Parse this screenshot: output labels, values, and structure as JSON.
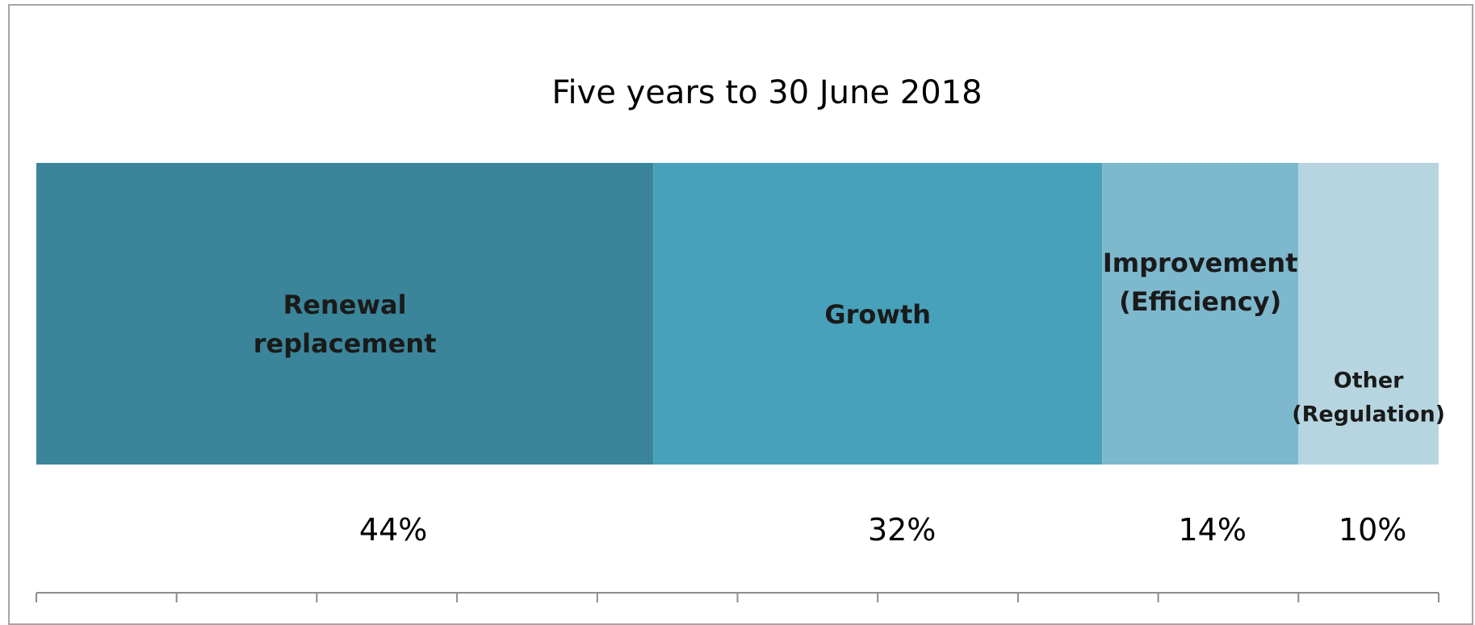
{
  "chart_data": {
    "type": "bar",
    "orientation": "horizontal-stacked-100",
    "title": "Five years to 30 June 2018",
    "categories": [
      "Renewal replacement",
      "Growth",
      "Improvement (Efficiency)",
      "Other (Regulation)"
    ],
    "series": [
      {
        "name": "Renewal replacement",
        "label_lines": [
          "Renewal",
          "replacement"
        ],
        "value": 44,
        "value_label": "44%",
        "color": "#3a8599"
      },
      {
        "name": "Growth",
        "label_lines": [
          "Growth"
        ],
        "value": 32,
        "value_label": "32%",
        "color": "#48a1ba"
      },
      {
        "name": "Improvement (Efficiency)",
        "label_lines": [
          "Improvement",
          "(Efficiency)"
        ],
        "value": 14,
        "value_label": "14%",
        "color": "#7db8cd"
      },
      {
        "name": "Other (Regulation)",
        "label_lines": [
          "Other",
          "(Regulation)"
        ],
        "value": 10,
        "value_label": "10%",
        "color": "#b7d5e0"
      }
    ],
    "xlim": [
      0,
      100
    ],
    "x_ticks": [
      0,
      10,
      20,
      30,
      40,
      50,
      60,
      70,
      80,
      90,
      100
    ],
    "xlabel": "",
    "ylabel": "",
    "grid": false,
    "legend": "none"
  }
}
